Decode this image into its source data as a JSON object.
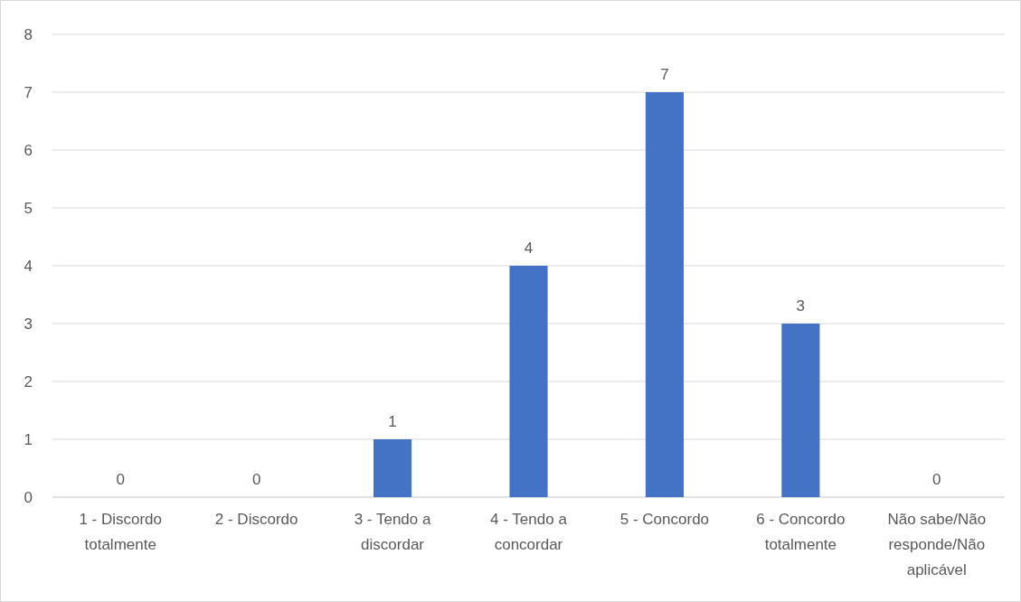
{
  "chart_data": {
    "type": "bar",
    "categories": [
      "1 - Discordo totalmente",
      "2 - Discordo",
      "3 - Tendo a discordar",
      "4 - Tendo a concordar",
      "5 - Concordo",
      "6 - Concordo totalmente",
      "Não sabe/Não responde/Não aplicável"
    ],
    "values": [
      0,
      0,
      1,
      4,
      7,
      3,
      0
    ],
    "color": "#4472c4",
    "ylim": [
      0,
      8
    ],
    "yticks": [
      0,
      1,
      2,
      3,
      4,
      5,
      6,
      7,
      8
    ],
    "grid": "y",
    "data_labels": true
  }
}
